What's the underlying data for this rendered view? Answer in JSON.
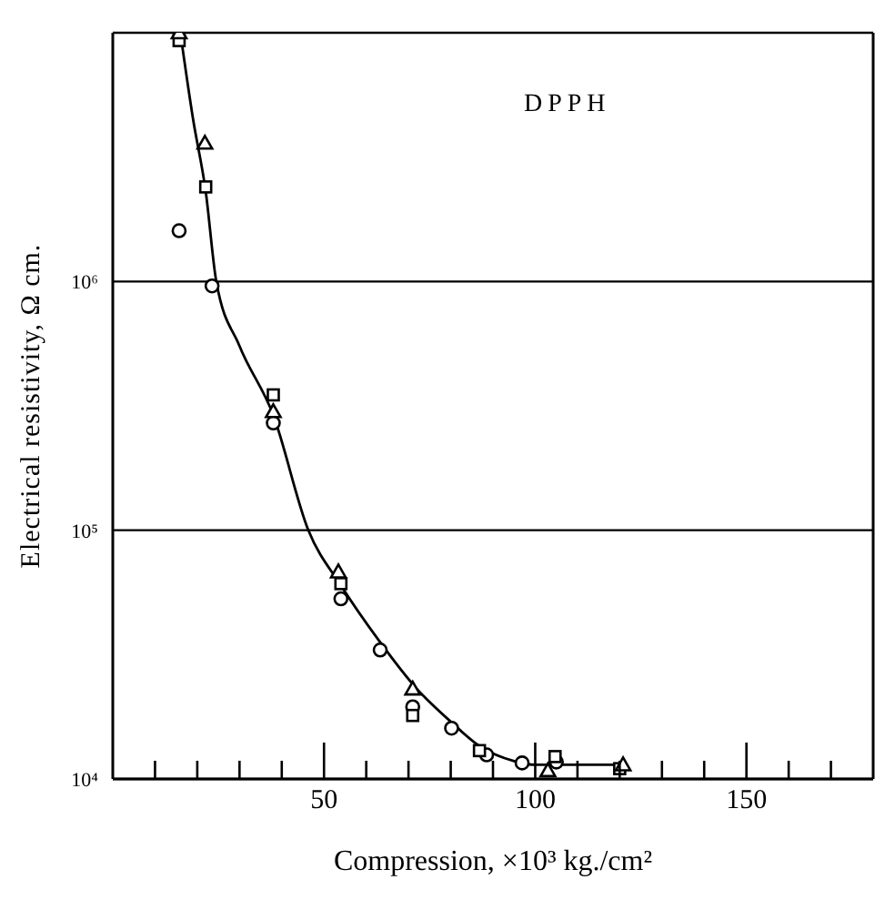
{
  "chart_data": {
    "type": "scatter",
    "xlabel": "Compression, ×10³ kg./cm²",
    "ylabel": "Electrical resistivity, Ω cm.",
    "annotations": [
      "DPPH"
    ],
    "log": "y",
    "grid": "y",
    "legend": false,
    "xlim": [
      0,
      180
    ],
    "xticks": [
      {
        "value": 10,
        "label": null
      },
      {
        "value": 20,
        "label": null
      },
      {
        "value": 30,
        "label": null
      },
      {
        "value": 40,
        "label": null
      },
      50,
      {
        "value": 60,
        "label": null
      },
      {
        "value": 70,
        "label": null
      },
      {
        "value": 80,
        "label": null
      },
      {
        "value": 90,
        "label": null
      },
      100,
      {
        "value": 110,
        "label": null
      },
      {
        "value": 120,
        "label": null
      },
      {
        "value": 130,
        "label": null
      },
      {
        "value": 140,
        "label": null
      },
      150,
      {
        "value": 160,
        "label": null
      },
      {
        "value": 170,
        "label": null
      }
    ],
    "ylim": [
      10000,
      10000000
    ],
    "yticks": [
      {
        "value": 10000,
        "label": "10⁴"
      },
      {
        "value": 100000,
        "label": "10⁵"
      },
      {
        "value": 1000000,
        "label": "10⁶"
      },
      {
        "value": 10000000,
        "label": null
      }
    ],
    "series": [
      {
        "marker": "circle",
        "color": "#000000",
        "x": [
          15.7,
          23.5,
          38,
          54,
          63.3,
          71,
          80.2,
          88.5,
          96.9,
          105
        ],
        "values": [
          1600000,
          960000,
          270000,
          53000,
          33000,
          19500,
          16000,
          12500,
          11600,
          11700
        ]
      },
      {
        "marker": "square",
        "color": "#000000",
        "x": [
          15.7,
          22,
          38,
          54,
          71,
          86.8,
          104.7,
          120
        ],
        "values": [
          9300000,
          2400000,
          350000,
          61000,
          18000,
          13000,
          12300,
          11000
        ]
      },
      {
        "marker": "triangle",
        "color": "#000000",
        "x": [
          15.7,
          21.8,
          38,
          53.4,
          71,
          103,
          120.8
        ],
        "values": [
          10000000,
          3600000,
          300000,
          68000,
          23000,
          10800,
          11400
        ]
      },
      {
        "type": "line",
        "marker": "none",
        "color": "#000000",
        "x": [
          16,
          19,
          22,
          24.5,
          30,
          38,
          46.3,
          54,
          63,
          72,
          80,
          87,
          95,
          100,
          120
        ],
        "values": [
          10000000,
          4500000,
          2300000,
          1000000,
          550000,
          290000,
          100000,
          60000,
          36000,
          23000,
          17000,
          13500,
          11800,
          11400,
          11400
        ]
      }
    ]
  }
}
